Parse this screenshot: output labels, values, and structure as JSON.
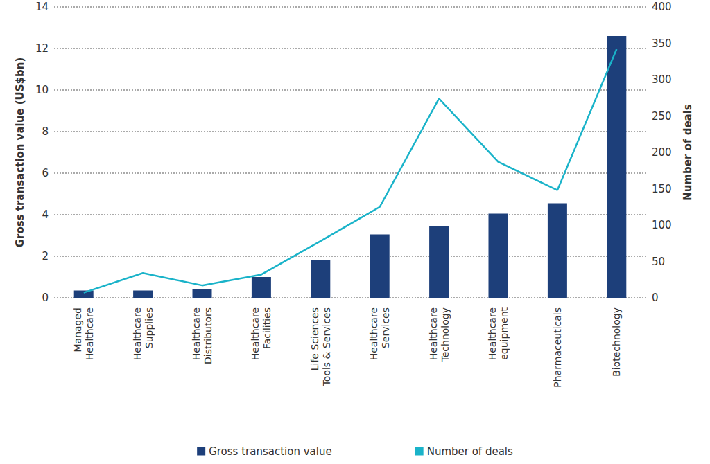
{
  "chart_data": {
    "type": "bar",
    "categories": [
      "Managed\nHealthcare",
      "Healthcare\nSupplies",
      "Healthcare\nDistributors",
      "Healthcare\nFacilities",
      "Life Sciences\nTools & Services",
      "Healthcare\nServices",
      "Healthcare\nTechnology",
      "Healthcare\nequipment",
      "Pharmaceuticals",
      "Biotechnology"
    ],
    "series": [
      {
        "name": "Gross transaction value",
        "type": "bar",
        "color": "#1d3f7a",
        "values": [
          0.35,
          0.35,
          0.4,
          1.0,
          1.8,
          3.05,
          3.45,
          4.05,
          4.55,
          12.6
        ]
      },
      {
        "name": "Number of deals",
        "type": "line",
        "axis": "y2",
        "color": "#1ab3c9",
        "values": [
          7,
          34,
          17,
          32,
          78,
          125,
          274,
          187,
          148,
          342
        ]
      }
    ],
    "ylabel": "Gross transaction value (US$bn)",
    "y2label": "Number of deals",
    "ylim": [
      0,
      14
    ],
    "yticks": [
      0,
      2,
      4,
      6,
      8,
      10,
      12,
      14
    ],
    "y2lim": [
      0,
      400
    ],
    "y2ticks": [
      0,
      50,
      100,
      150,
      200,
      250,
      300,
      350,
      400
    ],
    "grid": true,
    "legend": "bottom"
  }
}
